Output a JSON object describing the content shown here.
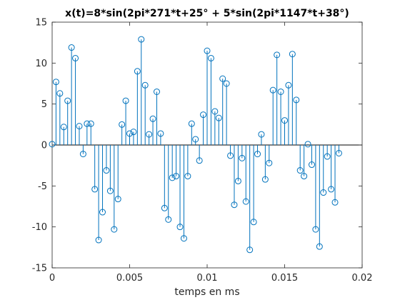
{
  "chart_data": {
    "type": "stem",
    "title": "x(t)=8*sin(2pi*271*t+25° + 5*sin(2pi*1147*t+38°)",
    "xlabel": "temps en ms",
    "ylabel": "",
    "xlim": [
      0,
      0.02
    ],
    "ylim": [
      -15,
      15
    ],
    "x_ticks": [
      0,
      0.005,
      0.01,
      0.015,
      0.02
    ],
    "x_tick_labels": [
      "0",
      "0.005",
      "0.01",
      "0.015",
      "0.02"
    ],
    "y_ticks": [
      -15,
      -10,
      -5,
      0,
      5,
      10,
      15
    ],
    "y_tick_labels": [
      "-15",
      "-10",
      "-5",
      "0",
      "5",
      "10",
      "15"
    ],
    "grid": false,
    "series": [
      {
        "color": "#0072BD",
        "marker": "circle-open",
        "x": [
          0,
          0.00025,
          0.0005,
          0.00075,
          0.001,
          0.00125,
          0.0015,
          0.00175,
          0.002,
          0.00225,
          0.0025,
          0.00275,
          0.003,
          0.00325,
          0.0035,
          0.00375,
          0.004,
          0.00425,
          0.0045,
          0.00475,
          0.005,
          0.00525,
          0.0055,
          0.00575,
          0.006,
          0.00625,
          0.0065,
          0.00675,
          0.007,
          0.00725,
          0.0075,
          0.00775,
          0.008,
          0.00825,
          0.0085,
          0.00875,
          0.009,
          0.00925,
          0.0095,
          0.00975,
          0.01,
          0.01025,
          0.0105,
          0.01075,
          0.011,
          0.01125,
          0.0115,
          0.01175,
          0.012,
          0.01225,
          0.0125,
          0.01275,
          0.013,
          0.01325,
          0.0135,
          0.01375,
          0.014,
          0.01425,
          0.0145,
          0.01475,
          0.015,
          0.01525,
          0.0155,
          0.01575,
          0.016,
          0.01625,
          0.0165,
          0.01675,
          0.017,
          0.01725,
          0.0175,
          0.01775,
          0.018,
          0.01825,
          0.0185
        ],
        "y": [
          0.1,
          7.7,
          6.3,
          2.2,
          5.4,
          11.9,
          10.6,
          2.3,
          -1.1,
          2.6,
          2.6,
          -5.4,
          -11.6,
          -8.2,
          -3.1,
          -5.6,
          -10.3,
          -6.6,
          2.5,
          5.4,
          1.4,
          1.6,
          9.0,
          12.9,
          7.3,
          1.3,
          3.2,
          6.5,
          1.4,
          -7.7,
          -9.1,
          -4.0,
          -3.8,
          -10.0,
          -11.4,
          -3.8,
          2.6,
          0.7,
          -1.9,
          3.7,
          11.5,
          10.6,
          4.1,
          3.3,
          8.1,
          7.5,
          -1.3,
          -7.3,
          -4.4,
          -1.6,
          -6.9,
          -12.8,
          -9.4,
          -1.1,
          1.3,
          -4.2,
          -2.2,
          6.7,
          11.0,
          6.5,
          3.0,
          7.3,
          11.1,
          5.5,
          -3.1,
          -3.8,
          0.1,
          -2.4,
          -10.3,
          -12.4,
          -5.8,
          -1.4,
          -5.4,
          -7.0,
          -1.0
        ]
      }
    ]
  }
}
